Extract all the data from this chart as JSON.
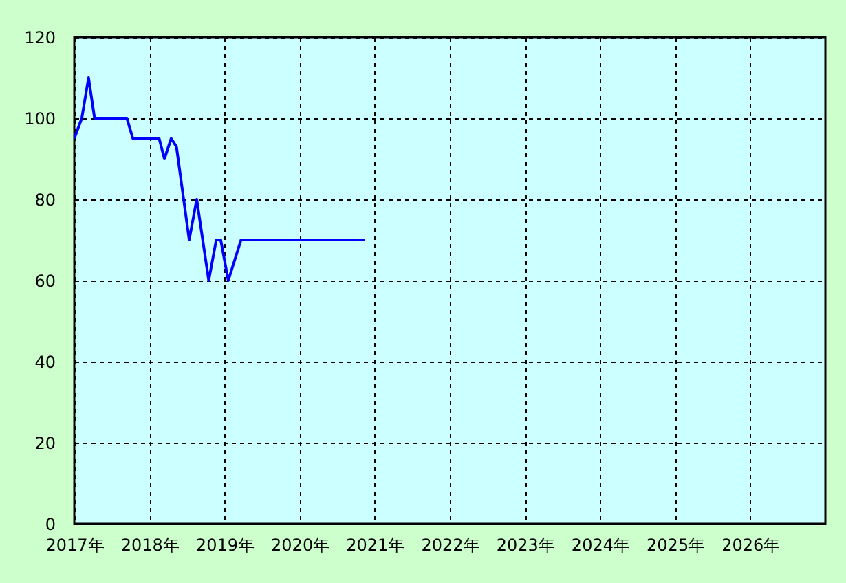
{
  "chart_data": {
    "type": "line",
    "x": [
      2017.0,
      2017.1,
      2017.19,
      2017.27,
      2017.7,
      2017.78,
      2018.13,
      2018.2,
      2018.29,
      2018.36,
      2018.53,
      2018.63,
      2018.79,
      2018.89,
      2018.95,
      2019.05,
      2019.22,
      2020.87
    ],
    "series": [
      {
        "color": "#0000ff",
        "values": [
          95,
          100,
          110,
          100,
          100,
          95,
          95,
          90,
          95,
          93,
          70,
          80,
          60,
          70,
          70,
          60,
          70,
          70
        ]
      }
    ],
    "xlim": [
      2017,
      2027
    ],
    "xticks": [
      {
        "value": 2017,
        "label": "2017年"
      },
      {
        "value": 2018,
        "label": "2018年"
      },
      {
        "value": 2019,
        "label": "2019年"
      },
      {
        "value": 2020,
        "label": "2020年"
      },
      {
        "value": 2021,
        "label": "2021年"
      },
      {
        "value": 2022,
        "label": "2022年"
      },
      {
        "value": 2023,
        "label": "2023年"
      },
      {
        "value": 2024,
        "label": "2024年"
      },
      {
        "value": 2025,
        "label": "2025年"
      },
      {
        "value": 2026,
        "label": "2026年"
      }
    ],
    "ylim": [
      0,
      120
    ],
    "yticks": [
      0,
      20,
      40,
      60,
      80,
      100,
      120
    ],
    "grid": true
  }
}
